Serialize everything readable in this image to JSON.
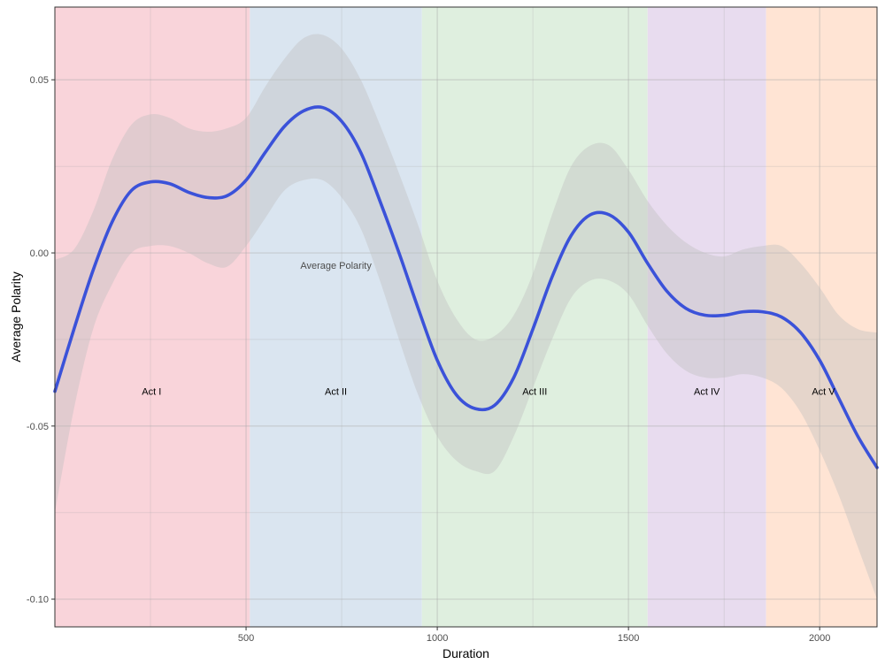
{
  "chart_data": {
    "type": "line",
    "xlabel": "Duration",
    "ylabel": "Average Polarity",
    "xlim": [
      0,
      2150
    ],
    "ylim": [
      -0.108,
      0.071
    ],
    "x_ticks": [
      500,
      1000,
      1500,
      2000
    ],
    "y_ticks": [
      -0.1,
      -0.05,
      0.0,
      0.05
    ],
    "x_tick_labels": [
      "500",
      "1000",
      "1500",
      "2000"
    ],
    "y_tick_labels": [
      "-0.10",
      "-0.05",
      "0.00",
      "0.05"
    ],
    "grid": true,
    "annotation": {
      "text": "Average Polarity",
      "x": 735,
      "y": -0.0035
    },
    "acts": [
      {
        "label": "Act I",
        "start": 0,
        "end": 510,
        "label_x": 253,
        "color": "#f9d4da"
      },
      {
        "label": "Act II",
        "start": 510,
        "end": 960,
        "label_x": 735,
        "color": "#dae5f0"
      },
      {
        "label": "Act III",
        "start": 960,
        "end": 1550,
        "label_x": 1255,
        "color": "#dfefdf"
      },
      {
        "label": "Act IV",
        "start": 1550,
        "end": 1860,
        "label_x": 1705,
        "color": "#e8dcef"
      },
      {
        "label": "Act V",
        "start": 1860,
        "end": 2150,
        "label_x": 2010,
        "color": "#ffe4d4"
      }
    ],
    "act_label_y": -0.04,
    "series": [
      {
        "line_color": "#3b52d9",
        "band_color": "#bebebe",
        "x": [
          0,
          50,
          100,
          150,
          200,
          250,
          300,
          350,
          400,
          450,
          500,
          550,
          600,
          650,
          700,
          750,
          800,
          850,
          900,
          950,
          1000,
          1050,
          1100,
          1150,
          1200,
          1250,
          1300,
          1350,
          1400,
          1450,
          1500,
          1550,
          1600,
          1650,
          1700,
          1750,
          1800,
          1850,
          1900,
          1950,
          2000,
          2050,
          2100,
          2150
        ],
        "y": [
          -0.04,
          -0.022,
          -0.005,
          0.009,
          0.018,
          0.0205,
          0.02,
          0.0175,
          0.016,
          0.0165,
          0.021,
          0.029,
          0.0365,
          0.041,
          0.042,
          0.038,
          0.029,
          0.015,
          0.0,
          -0.016,
          -0.031,
          -0.041,
          -0.045,
          -0.044,
          -0.036,
          -0.022,
          -0.007,
          0.005,
          0.011,
          0.011,
          0.006,
          -0.003,
          -0.011,
          -0.016,
          -0.018,
          -0.018,
          -0.017,
          -0.017,
          -0.0185,
          -0.023,
          -0.031,
          -0.042,
          -0.053,
          -0.062
        ],
        "lower": [
          -0.075,
          -0.045,
          -0.022,
          -0.009,
          0.0,
          0.002,
          0.002,
          0.0,
          -0.003,
          -0.004,
          0.002,
          0.01,
          0.018,
          0.021,
          0.021,
          0.016,
          0.007,
          -0.008,
          -0.025,
          -0.041,
          -0.053,
          -0.06,
          -0.063,
          -0.063,
          -0.053,
          -0.039,
          -0.025,
          -0.013,
          -0.008,
          -0.008,
          -0.012,
          -0.021,
          -0.029,
          -0.034,
          -0.036,
          -0.036,
          -0.035,
          -0.036,
          -0.039,
          -0.046,
          -0.057,
          -0.07,
          -0.085,
          -0.1
        ],
        "upper": [
          -0.002,
          0.001,
          0.012,
          0.027,
          0.037,
          0.04,
          0.039,
          0.036,
          0.035,
          0.036,
          0.039,
          0.048,
          0.056,
          0.062,
          0.063,
          0.059,
          0.05,
          0.037,
          0.023,
          0.008,
          -0.008,
          -0.019,
          -0.025,
          -0.024,
          -0.018,
          -0.006,
          0.011,
          0.025,
          0.031,
          0.031,
          0.024,
          0.015,
          0.008,
          0.003,
          0.0,
          -0.001,
          0.001,
          0.002,
          0.002,
          -0.003,
          -0.01,
          -0.018,
          -0.022,
          -0.023
        ]
      }
    ]
  }
}
